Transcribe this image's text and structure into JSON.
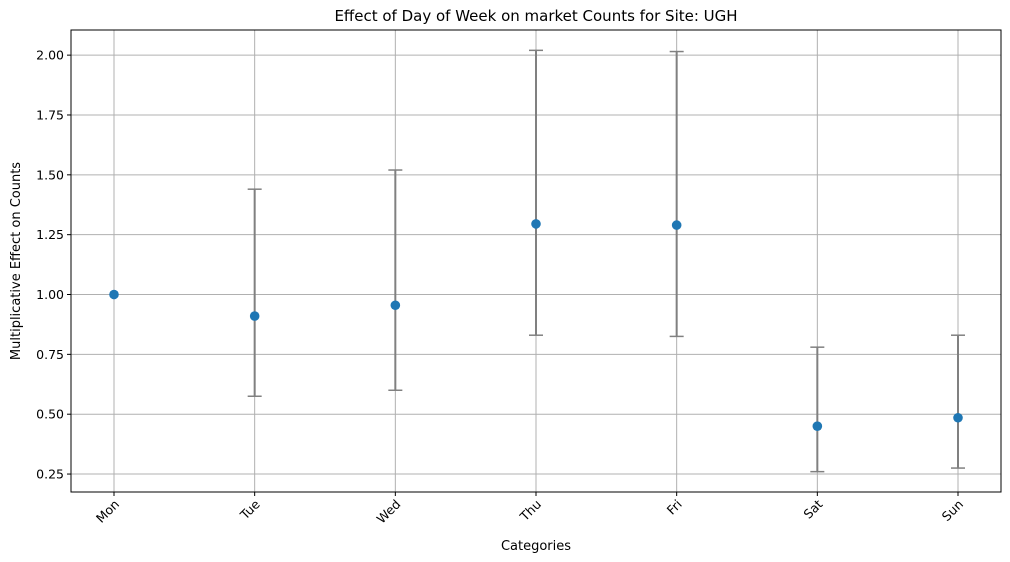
{
  "chart_data": {
    "type": "scatter",
    "title": "Effect of Day of Week on market Counts for Site: UGH",
    "xlabel": "Categories",
    "ylabel": "Multiplicative Effect on Counts",
    "categories": [
      "Mon",
      "Tue",
      "Wed",
      "Thu",
      "Fri",
      "Sat",
      "Sun"
    ],
    "values": [
      1.0,
      0.91,
      0.955,
      1.295,
      1.29,
      0.45,
      0.485
    ],
    "lower": [
      null,
      0.575,
      0.6,
      0.83,
      0.825,
      0.26,
      0.275
    ],
    "upper": [
      null,
      1.44,
      1.52,
      2.02,
      2.015,
      0.78,
      0.83
    ],
    "ylim": [
      0.175,
      2.105
    ],
    "yticks": [
      0.25,
      0.5,
      0.75,
      1.0,
      1.25,
      1.5,
      1.75,
      2.0
    ],
    "ytick_labels": [
      "0.25",
      "0.50",
      "0.75",
      "1.00",
      "1.25",
      "1.50",
      "1.75",
      "2.00"
    ],
    "grid": true,
    "colors": {
      "point": "#1f77b4",
      "errorbar": "#808080",
      "grid": "#b0b0b0"
    }
  }
}
